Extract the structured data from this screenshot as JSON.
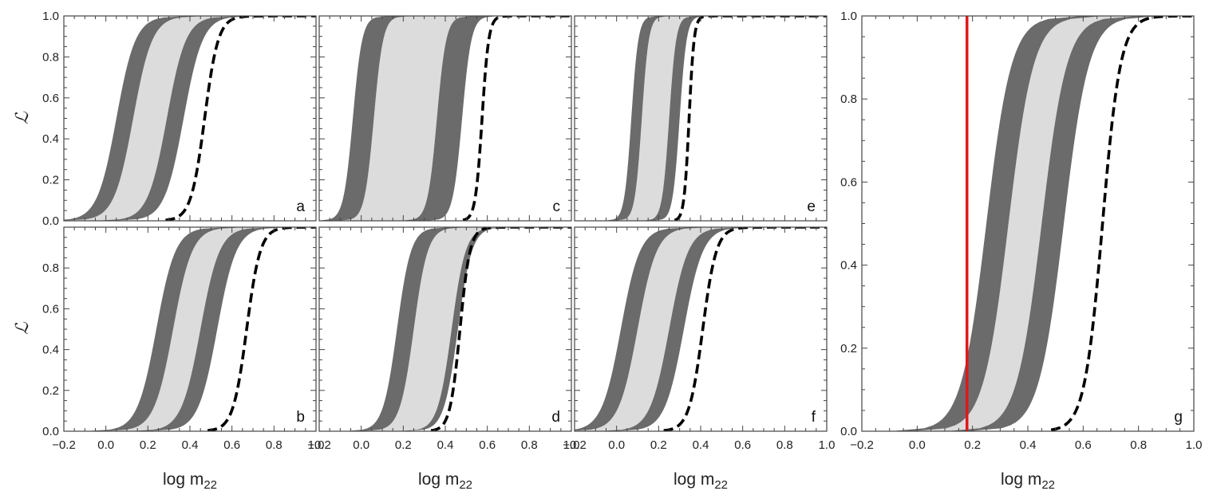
{
  "chart_data": {
    "type": "area",
    "description_axes": {
      "xlabel": "log m",
      "xlabel_sub": "22",
      "ylabel": "ℒ",
      "xlim": [
        -0.2,
        1.0
      ],
      "ylim": [
        0.0,
        1.0
      ],
      "x_ticks": [
        "-0.2",
        "0.0",
        "0.2",
        "0.4",
        "0.6",
        "0.8",
        "1.0"
      ],
      "y_ticks_full": [
        "0.0",
        "0.2",
        "0.4",
        "0.6",
        "0.8",
        "1.0"
      ],
      "y_ticks_lower": [
        "0.0",
        "0.2",
        "0.4",
        "0.6",
        "0.8"
      ]
    },
    "colors": {
      "dark_band": "#6b6b6b",
      "light_band": "#dcdcdc",
      "dashed": "#000000",
      "vline": "#e0161b"
    },
    "panels": [
      {
        "letter": "a",
        "left_band": [
          0.05,
          0.13
        ],
        "right_band": [
          0.29,
          0.37
        ],
        "dashed": 0.47,
        "steep": 22
      },
      {
        "letter": "b",
        "left_band": [
          0.24,
          0.32
        ],
        "right_band": [
          0.45,
          0.53
        ],
        "dashed": 0.67,
        "steep": 22
      },
      {
        "letter": "c",
        "left_band": [
          -0.04,
          0.06
        ],
        "right_band": [
          0.36,
          0.48
        ],
        "dashed": 0.575,
        "steep": 45
      },
      {
        "letter": "d",
        "left_band": [
          0.17,
          0.25
        ],
        "right_band": [
          0.43,
          0.46
        ],
        "dashed": 0.47,
        "steep": 30
      },
      {
        "letter": "e",
        "left_band": [
          0.07,
          0.12
        ],
        "right_band": [
          0.25,
          0.3
        ],
        "dashed": 0.345,
        "steep": 60
      },
      {
        "letter": "f",
        "left_band": [
          0.02,
          0.1
        ],
        "right_band": [
          0.25,
          0.32
        ],
        "dashed": 0.41,
        "steep": 22
      },
      {
        "letter": "g",
        "left_band": [
          0.25,
          0.33
        ],
        "right_band": [
          0.45,
          0.53
        ],
        "dashed": 0.67,
        "steep": 22,
        "vline": 0.18
      }
    ]
  }
}
